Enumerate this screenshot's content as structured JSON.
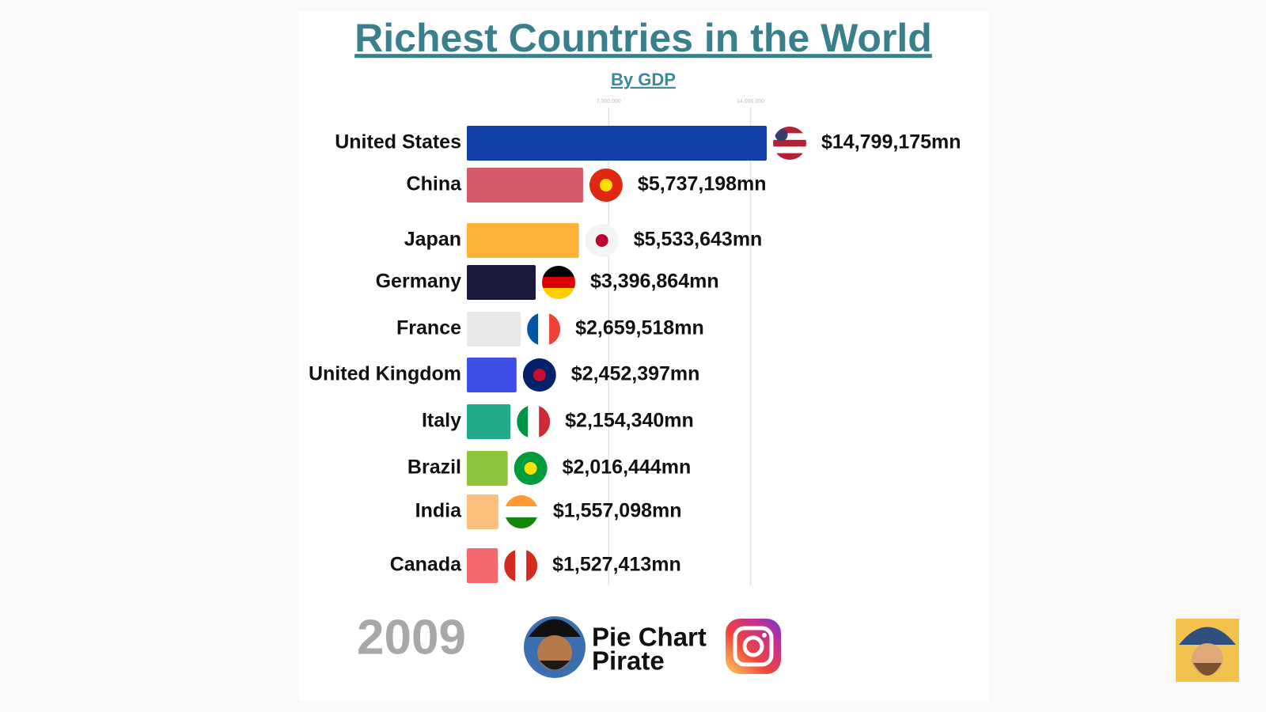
{
  "chart_data": {
    "type": "bar",
    "orientation": "horizontal",
    "title": "Richest Countries in the World",
    "subtitle": "By GDP",
    "categories": [
      "United States",
      "China",
      "Japan",
      "Germany",
      "France",
      "United Kingdom",
      "Italy",
      "Brazil",
      "India",
      "Canada"
    ],
    "values": [
      14799175,
      5737198,
      5533643,
      3396864,
      2659518,
      2452397,
      2154340,
      2016444,
      1557098,
      1527413
    ],
    "value_labels": [
      "$14,799,175mn",
      "$5,737,198mn",
      "$5,533,643mn",
      "$3,396,864mn",
      "$2,659,518mn",
      "$2,452,397mn",
      "$2,154,340mn",
      "$2,016,444mn",
      "$1,557,098mn",
      "$1,527,413mn"
    ],
    "colors": [
      "#1340a8",
      "#d45a6a",
      "#fcb337",
      "#1a1a3a",
      "#e8e8e8",
      "#3d4fe6",
      "#21a98a",
      "#8cc43a",
      "#fdc17d",
      "#f5676b"
    ],
    "xlim": [
      0,
      14799175
    ],
    "xticks": [
      {
        "value": 7000000,
        "label": "7,000,000"
      },
      {
        "value": 14000000,
        "label": "14,000,000"
      }
    ],
    "grid": true
  },
  "overlay": {
    "year": "2009",
    "brand": [
      "Pie Chart",
      "Pirate"
    ]
  }
}
